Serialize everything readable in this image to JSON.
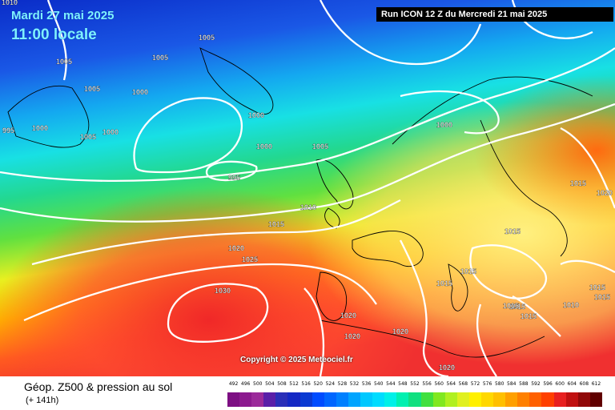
{
  "header": {
    "date": "Mardi 27 mai 2025",
    "time": "11:00 locale",
    "run": "Run ICON 12 Z du Mercredi 21 mai 2025"
  },
  "copyright": "Copyright © 2025 Meteociel.fr",
  "footer": {
    "title": "Géop. Z500 & pression au sol",
    "lead": "(+ 141h)"
  },
  "map": {
    "map_type": "weather forecast map",
    "isobar_labels": [
      "1010",
      "1005",
      "1005",
      "1005",
      "1000",
      "1005",
      "1000",
      "995",
      "1000",
      "1005",
      "1000",
      "1000",
      "1005",
      "995",
      "1010",
      "1000",
      "1015",
      "1020",
      "1025",
      "1030",
      "1015",
      "1020",
      "1015",
      "1015",
      "1020",
      "1015",
      "1015",
      "1020",
      "1020",
      "1020",
      "1010",
      "1015",
      "1015",
      "1015",
      "1015"
    ]
  },
  "scale": {
    "ticks": [
      "492",
      "496",
      "500",
      "504",
      "508",
      "512",
      "516",
      "520",
      "524",
      "528",
      "532",
      "536",
      "540",
      "544",
      "548",
      "552",
      "556",
      "560",
      "564",
      "568",
      "572",
      "576",
      "580",
      "584",
      "588",
      "592",
      "596",
      "600",
      "604",
      "608",
      "612"
    ],
    "colors": [
      "#7d0f83",
      "#8c1a8f",
      "#9b2a9a",
      "#5a1fa8",
      "#2a2fb8",
      "#1428c4",
      "#0a3ad2",
      "#004cff",
      "#0066ff",
      "#0080ff",
      "#00a4ff",
      "#00c8ff",
      "#00dcff",
      "#00f0e8",
      "#00f0b0",
      "#10e080",
      "#40e040",
      "#80e820",
      "#b0f020",
      "#e0f020",
      "#fff000",
      "#ffd800",
      "#ffc000",
      "#ffa000",
      "#ff8000",
      "#ff6000",
      "#ff4000",
      "#e82020",
      "#c01010",
      "#900808",
      "#600000"
    ]
  },
  "colors": {
    "isobar": "#ffffff",
    "text_blue": "#7ff0ff",
    "coast": "#000000"
  }
}
